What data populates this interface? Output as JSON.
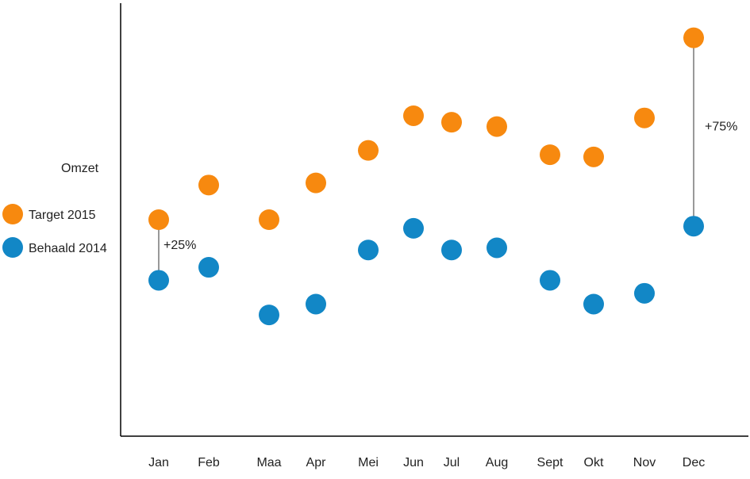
{
  "chart_data": {
    "type": "scatter",
    "title": "Omzet",
    "xlabel": "",
    "ylabel": "",
    "categories": [
      "Jan",
      "Feb",
      "Maa",
      "Apr",
      "Mei",
      "Jun",
      "Jul",
      "Aug",
      "Sept",
      "Okt",
      "Nov",
      "Dec"
    ],
    "series": [
      {
        "name": "Target 2015",
        "color": "#F7890F",
        "values": [
          50,
          58,
          50,
          58.5,
          66,
          74,
          72.5,
          71.5,
          65,
          64.5,
          73.5,
          92
        ]
      },
      {
        "name": "Behaald 2014",
        "color": "#1287C6",
        "values": [
          36,
          39,
          28,
          30.5,
          43,
          48,
          43,
          43.5,
          36,
          30.5,
          33,
          48.5
        ]
      }
    ],
    "ylim": [
      0,
      100
    ],
    "grid": false,
    "legend_position": "left",
    "annotations": [
      {
        "category": "Jan",
        "text": "+25%"
      },
      {
        "category": "Dec",
        "text": "+75%"
      }
    ]
  }
}
